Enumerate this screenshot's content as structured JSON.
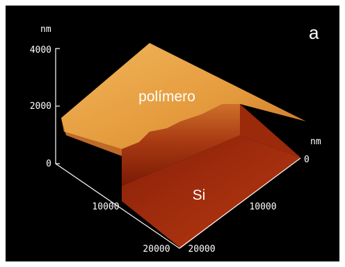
{
  "panel_label": "a",
  "z_axis": {
    "unit": "nm",
    "ticks": [
      "0",
      "2000",
      "4000"
    ]
  },
  "left_axis": {
    "ticks": [
      "10000",
      "20000"
    ]
  },
  "right_axis": {
    "unit": "nm",
    "ticks": [
      "0",
      "10000",
      "20000"
    ]
  },
  "regions": {
    "top": "polímero",
    "bottom": "Si"
  }
}
